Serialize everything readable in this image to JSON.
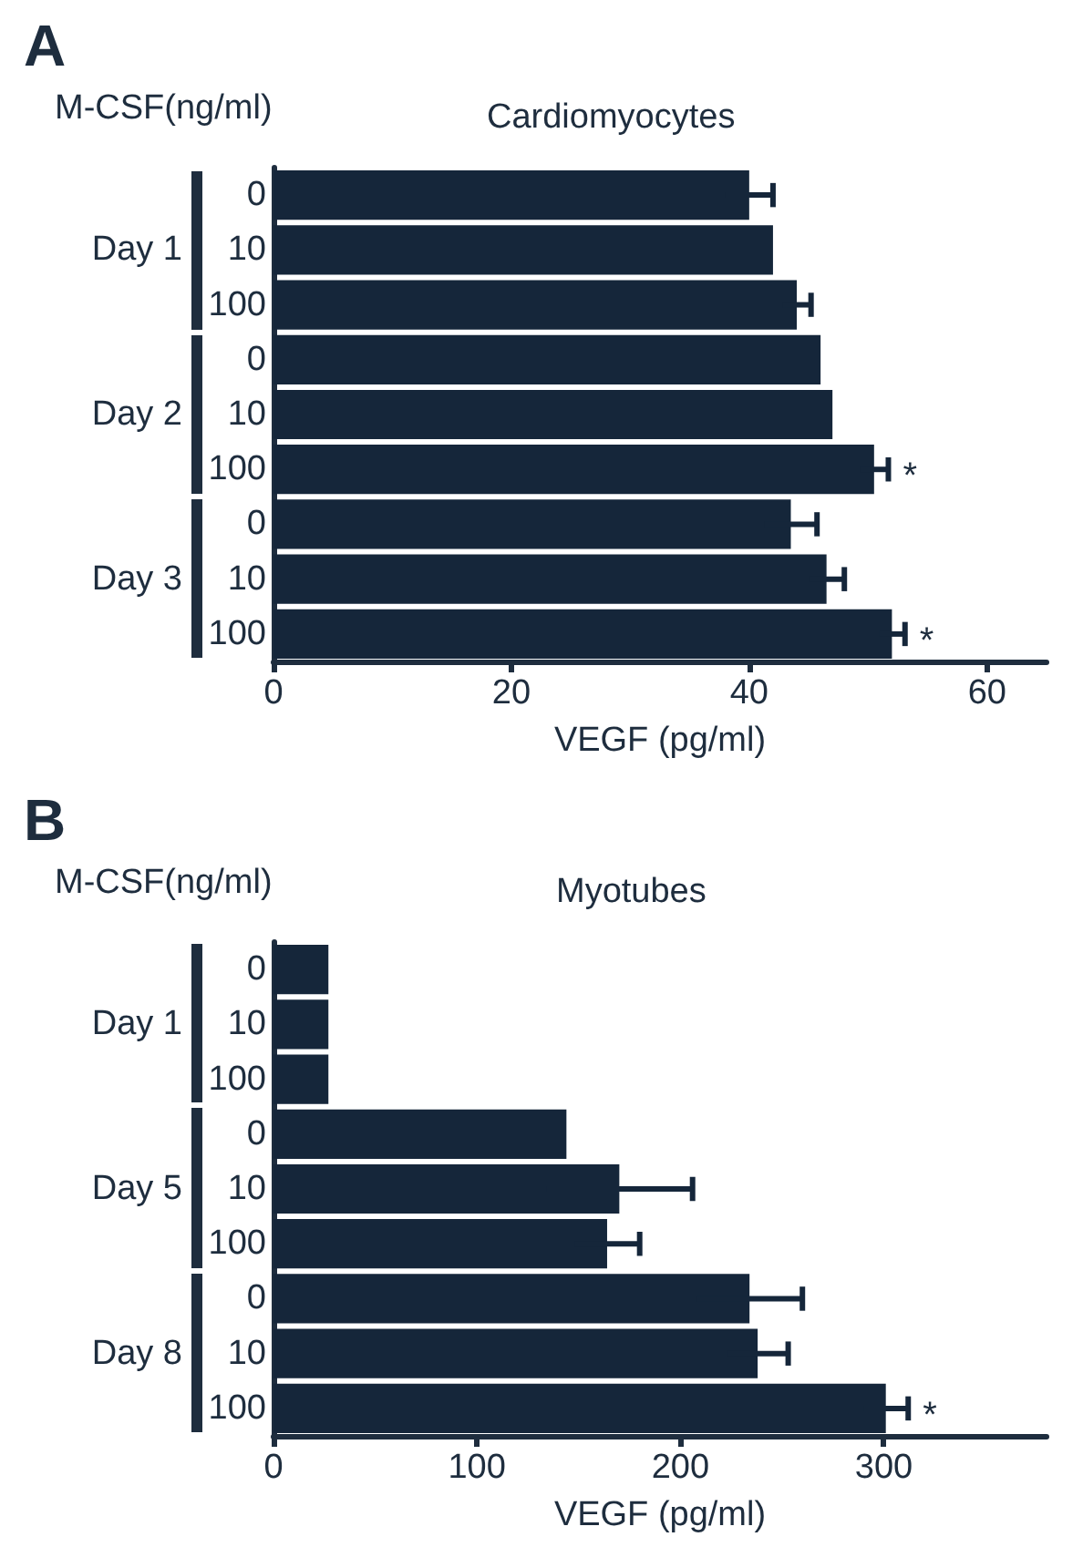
{
  "chart_data": [
    {
      "type": "bar",
      "orientation": "horizontal",
      "title": "A",
      "subtitle": "Cardiomyocytes",
      "ylabel": "M-CSF(ng/ml)",
      "xlabel": "VEGF (pg/ml)",
      "categories": [
        "0",
        "10",
        "100",
        "0",
        "10",
        "100",
        "0",
        "10",
        "100"
      ],
      "values": [
        40,
        42,
        44,
        46,
        47,
        50.5,
        43.5,
        46.5,
        52
      ],
      "errors": [
        2,
        null,
        1.2,
        null,
        null,
        1.2,
        2.2,
        1.5,
        1.1
      ],
      "value_labels": [
        null,
        null,
        null,
        null,
        null,
        "*",
        null,
        null,
        "*"
      ],
      "color": "#15263a",
      "xlim": [
        0,
        65
      ],
      "xticks": [
        0,
        20,
        40,
        60
      ],
      "grid": false,
      "annotations": [
        "Day 1",
        "Day 2",
        "Day 3"
      ]
    },
    {
      "type": "bar",
      "orientation": "horizontal",
      "title": "B",
      "subtitle": "Myotubes",
      "ylabel": "M-CSF(ng/ml)",
      "xlabel": "VEGF (pg/ml)",
      "categories": [
        "0",
        "10",
        "100",
        "0",
        "10",
        "100",
        "0",
        "10",
        "100"
      ],
      "values": [
        27,
        27,
        27,
        144,
        170,
        164,
        234,
        238,
        301
      ],
      "errors": [
        null,
        null,
        null,
        null,
        36,
        16,
        26,
        15,
        11
      ],
      "value_labels": [
        null,
        null,
        null,
        null,
        null,
        null,
        null,
        null,
        "*"
      ],
      "color": "#15263a",
      "xlim": [
        0,
        380
      ],
      "xticks": [
        0,
        100,
        200,
        300
      ],
      "grid": false,
      "annotations": [
        "Day 1",
        "Day 5",
        "Day 8"
      ]
    }
  ]
}
